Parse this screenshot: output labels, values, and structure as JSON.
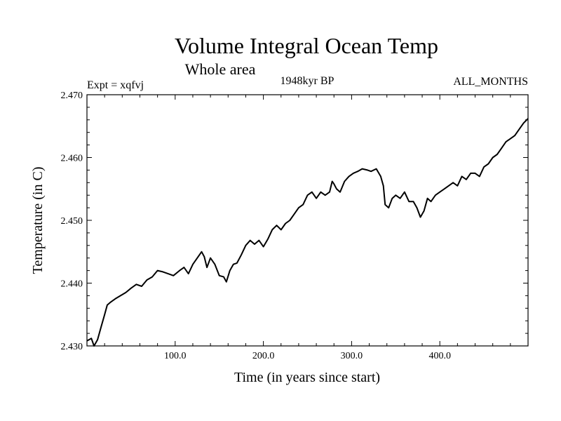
{
  "chart_data": {
    "type": "line",
    "title": "Volume Integral Ocean Temp",
    "subtitle": "Whole area",
    "annotation_left": "Expt = xqfvj",
    "annotation_center": "1948kyr BP",
    "annotation_right": "ALL_MONTHS",
    "xlabel": "Time (in years since start)",
    "ylabel": "Temperature (in C)",
    "xlim": [
      0,
      500
    ],
    "ylim": [
      2.43,
      2.47
    ],
    "x_ticks": [
      100,
      200,
      300,
      400
    ],
    "x_tick_labels": [
      "100.0",
      "200.0",
      "300.0",
      "400.0"
    ],
    "y_ticks": [
      2.43,
      2.44,
      2.45,
      2.46,
      2.47
    ],
    "y_tick_labels": [
      "2.430",
      "2.440",
      "2.450",
      "2.460",
      "2.470"
    ],
    "grid": false,
    "series": [
      {
        "name": "Temperature",
        "x": [
          0,
          5,
          8,
          12,
          16,
          20,
          23,
          27,
          32,
          38,
          44,
          50,
          56,
          62,
          68,
          74,
          80,
          86,
          92,
          98,
          105,
          110,
          115,
          120,
          125,
          130,
          133,
          136,
          140,
          145,
          150,
          155,
          158,
          162,
          166,
          170,
          175,
          180,
          185,
          190,
          195,
          200,
          205,
          210,
          215,
          220,
          225,
          230,
          235,
          240,
          245,
          250,
          255,
          260,
          265,
          270,
          275,
          278,
          280,
          283,
          287,
          292,
          297,
          302,
          307,
          312,
          318,
          322,
          328,
          333,
          336,
          338,
          342,
          346,
          350,
          355,
          360,
          365,
          370,
          374,
          378,
          382,
          386,
          390,
          395,
          400,
          405,
          410,
          415,
          420,
          425,
          430,
          435,
          440,
          445,
          450,
          455,
          460,
          465,
          470,
          475,
          480,
          485,
          490,
          495,
          500
        ],
        "values": [
          2.4308,
          2.4312,
          2.43,
          2.431,
          2.433,
          2.435,
          2.4365,
          2.437,
          2.4375,
          2.438,
          2.4385,
          2.4392,
          2.4398,
          2.4395,
          2.4405,
          2.441,
          2.442,
          2.4418,
          2.4415,
          2.4412,
          2.442,
          2.4425,
          2.4415,
          2.443,
          2.444,
          2.445,
          2.4442,
          2.4425,
          2.444,
          2.443,
          2.4412,
          2.441,
          2.4402,
          2.442,
          2.443,
          2.4432,
          2.4445,
          2.446,
          2.4468,
          2.4462,
          2.4468,
          2.4458,
          2.447,
          2.4485,
          2.4492,
          2.4485,
          2.4495,
          2.45,
          2.451,
          2.452,
          2.4525,
          2.454,
          2.4545,
          2.4535,
          2.4545,
          2.454,
          2.4545,
          2.4562,
          2.4558,
          2.455,
          2.4545,
          2.4562,
          2.457,
          2.4575,
          2.4578,
          2.4582,
          2.458,
          2.4578,
          2.4582,
          2.457,
          2.4555,
          2.4525,
          2.452,
          2.4535,
          2.454,
          2.4535,
          2.4545,
          2.453,
          2.453,
          2.452,
          2.4505,
          2.4515,
          2.4535,
          2.453,
          2.454,
          2.4545,
          2.455,
          2.4555,
          2.456,
          2.4555,
          2.457,
          2.4565,
          2.4575,
          2.4575,
          2.457,
          2.4585,
          2.459,
          2.46,
          2.4605,
          2.4615,
          2.4625,
          2.463,
          2.4635,
          2.4645,
          2.4655,
          2.4662
        ]
      }
    ]
  }
}
